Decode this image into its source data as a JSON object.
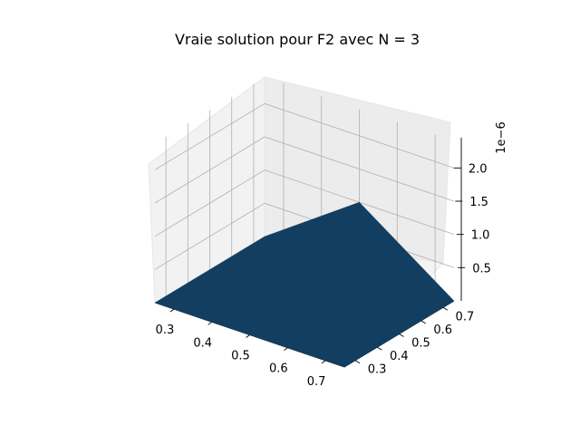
{
  "chart_data": {
    "type": "surface3d",
    "title": "Vraie solution pour F2 avec N = 3",
    "z_offset_label": "1e−6",
    "x_ticks": [
      "0.3",
      "0.4",
      "0.5",
      "0.6",
      "0.7"
    ],
    "y_ticks": [
      "0.3",
      "0.4",
      "0.5",
      "0.6",
      "0.7"
    ],
    "z_ticks": [
      "0.5",
      "1.0",
      "1.5",
      "2.0"
    ],
    "xlim": [
      0.25,
      0.75
    ],
    "ylim": [
      0.25,
      0.75
    ],
    "zlim": [
      0.0,
      2.4
    ],
    "grid": true,
    "surface_color": "#123f61",
    "x": [
      0.25,
      0.5,
      0.75
    ],
    "y": [
      0.25,
      0.5,
      0.75
    ],
    "z": [
      [
        0.0,
        0.0,
        0.0
      ],
      [
        0.0,
        0.5,
        0.0
      ],
      [
        0.0,
        1.0,
        0.0
      ]
    ]
  }
}
